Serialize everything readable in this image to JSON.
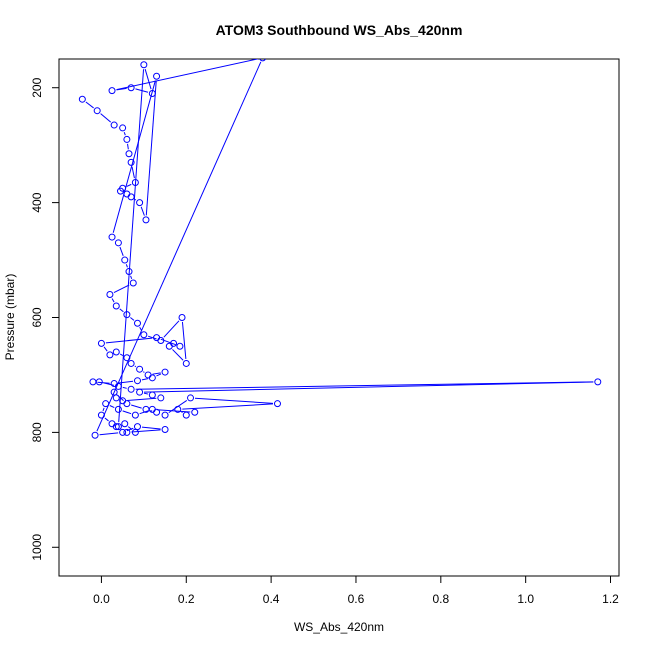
{
  "chart_data": {
    "type": "line",
    "title": "ATOM3 Southbound WS_Abs_420nm",
    "xlabel": "WS_Abs_420nm",
    "ylabel": "Pressure (mbar)",
    "xlim": [
      -0.1,
      1.22
    ],
    "ylim": [
      1050,
      150
    ],
    "y_reversed": true,
    "x_ticks": [
      "0.0",
      "0.2",
      "0.4",
      "0.6",
      "0.8",
      "1.0",
      "1.2"
    ],
    "x_tick_values": [
      0,
      0.2,
      0.4,
      0.6,
      0.8,
      1.0,
      1.2
    ],
    "y_ticks": [
      "200",
      "400",
      "600",
      "800",
      "1000"
    ],
    "y_tick_values": [
      200,
      400,
      600,
      800,
      1000
    ],
    "grid": false,
    "series_color": "#0000ff",
    "marker": "open-circle",
    "series": [
      {
        "x": [
          -0.045,
          -0.01,
          0.03,
          0.05,
          0.06,
          0.065,
          0.07,
          0.08,
          0.05,
          0.045,
          0.06,
          0.07,
          0.09,
          0.105,
          0.13,
          0.025,
          0.04,
          0.055,
          0.065,
          0.075,
          0.02,
          0.035,
          0.06,
          0.085,
          0.1,
          0.14,
          0.19,
          0.2,
          0.16,
          0.17,
          0.185,
          0.13,
          0.0,
          0.02,
          0.035,
          0.06,
          0.07,
          0.09,
          0.11,
          0.15,
          0.12,
          0.085,
          0.03,
          -0.02,
          -0.005,
          0.04,
          0.07,
          1.17,
          0.09,
          0.12,
          0.14,
          0.05,
          0.035,
          0.03,
          0.06,
          0.105,
          0.13,
          0.15,
          0.21,
          0.415,
          0.18,
          0.2,
          0.22,
          0.12,
          0.08,
          0.04,
          0.01,
          0.0,
          0.025,
          0.035,
          0.055,
          0.08,
          0.06,
          0.15,
          0.085,
          0.05,
          -0.015,
          0.38,
          0.025,
          0.07,
          0.12,
          0.1,
          0.04
        ],
        "y": [
          220,
          240,
          265,
          270,
          290,
          315,
          330,
          365,
          375,
          380,
          385,
          390,
          400,
          430,
          180,
          460,
          470,
          500,
          520,
          540,
          560,
          580,
          595,
          610,
          630,
          640,
          600,
          680,
          650,
          645,
          650,
          635,
          645,
          665,
          660,
          670,
          680,
          690,
          700,
          695,
          705,
          710,
          715,
          712,
          712,
          720,
          725,
          712,
          730,
          735,
          740,
          745,
          740,
          730,
          750,
          760,
          765,
          770,
          740,
          750,
          760,
          770,
          765,
          760,
          770,
          760,
          750,
          770,
          785,
          790,
          785,
          800,
          800,
          795,
          790,
          800,
          805,
          148,
          205,
          200,
          210,
          160,
          790
        ]
      }
    ]
  }
}
